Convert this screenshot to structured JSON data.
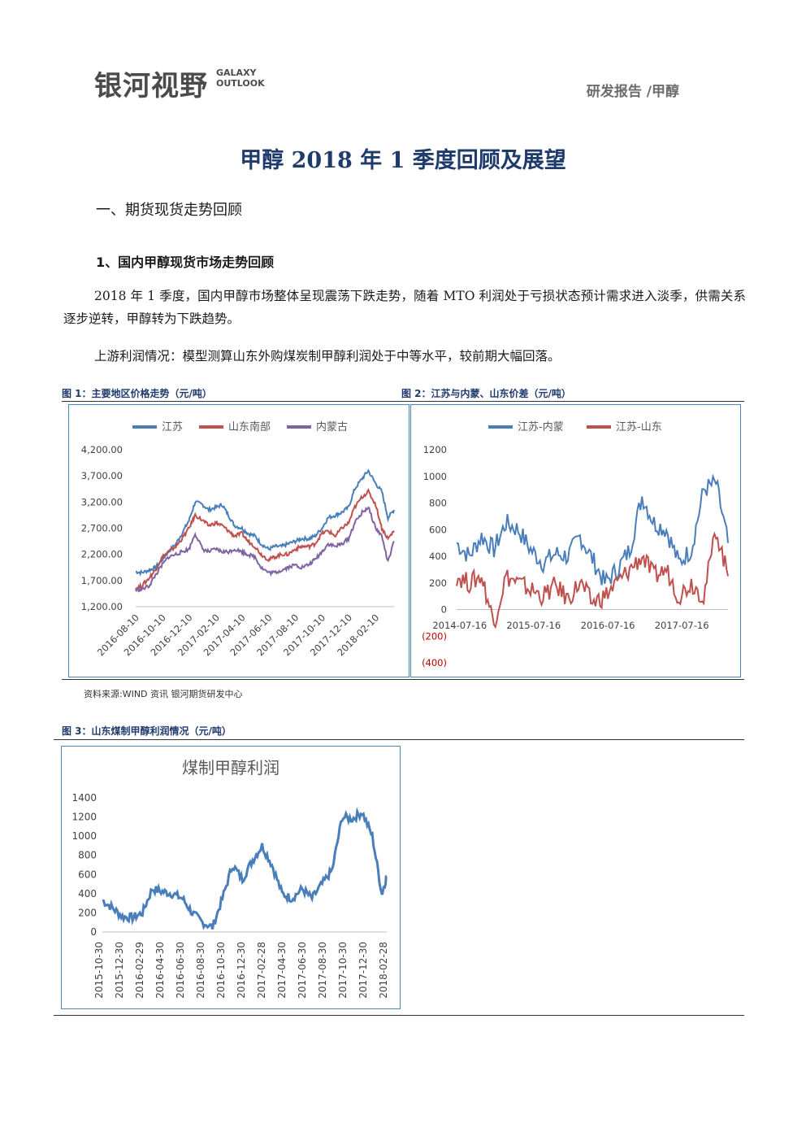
{
  "header": {
    "logo_cn": "银河视野",
    "logo_en_line1": "GALAXY",
    "logo_en_line2": "OUTLOOK",
    "report_type": "研发报告 /甲醇"
  },
  "title": "甲醇 2018 年 1 季度回顾及展望",
  "section1": "一、期货现货走势回顾",
  "subsection1": "1、国内甲醇现货市场走势回顾",
  "para1": "2018 年 1 季度，国内甲醇市场整体呈现震荡下跌走势，随着 MTO 利润处于亏损状态预计需求进入淡季，供需关系逐步逆转，甲醇转为下跌趋势。",
  "para2": "上游利润情况：模型测算山东外购煤炭制甲醇利润处于中等水平，较前期大幅回落。",
  "fig1_caption": "图 1：主要地区价格走势（元/吨）",
  "fig2_caption": "图 2：江苏与内蒙、山东价差（元/吨）",
  "fig3_caption": "图 3：山东煤制甲醇利润情况（元/吨）",
  "source": "资料来源:WIND 资讯   银河期货研发中心",
  "colors": {
    "blue": "#4a7ebb",
    "red": "#c0504d",
    "purple": "#8064a2",
    "navy": "#1f3a6d"
  },
  "chart_data": [
    {
      "type": "line",
      "title": "",
      "legend": [
        "江苏",
        "山东南部",
        "内蒙古"
      ],
      "legend_position": "top",
      "ylim": [
        1200,
        4200
      ],
      "yticks": [
        "4,200.00",
        "3,700.00",
        "3,200.00",
        "2,700.00",
        "2,200.00",
        "1,700.00",
        "1,200.00"
      ],
      "xticks": [
        "2016-08-10",
        "2016-10-10",
        "2016-12-10",
        "2017-02-10",
        "2017-04-10",
        "2017-06-10",
        "2017-08-10",
        "2017-10-10",
        "2017-12-10",
        "2018-02-10"
      ],
      "x": [
        "2016-08-01",
        "2016-08-15",
        "2016-09-01",
        "2016-09-15",
        "2016-10-01",
        "2016-10-15",
        "2016-11-01",
        "2016-11-15",
        "2016-12-01",
        "2016-12-15",
        "2017-01-01",
        "2017-01-15",
        "2017-02-01",
        "2017-02-15",
        "2017-03-01",
        "2017-03-15",
        "2017-04-01",
        "2017-04-15",
        "2017-05-01",
        "2017-05-15",
        "2017-06-01",
        "2017-06-15",
        "2017-07-01",
        "2017-07-15",
        "2017-08-01",
        "2017-08-15",
        "2017-09-01",
        "2017-09-15",
        "2017-10-01",
        "2017-10-15",
        "2017-11-01",
        "2017-11-15",
        "2017-12-01",
        "2017-12-15",
        "2018-01-01",
        "2018-01-15",
        "2018-02-01",
        "2018-02-15",
        "2018-03-01",
        "2018-03-15"
      ],
      "series": [
        {
          "name": "江苏",
          "values": [
            1870,
            1850,
            1900,
            1950,
            2100,
            2250,
            2400,
            2600,
            2850,
            3200,
            3150,
            3050,
            3100,
            3150,
            2950,
            2750,
            2700,
            2600,
            2550,
            2400,
            2300,
            2350,
            2350,
            2400,
            2450,
            2500,
            2500,
            2550,
            2700,
            2900,
            2950,
            3000,
            3100,
            3450,
            3650,
            3800,
            3550,
            3400,
            2900,
            3050
          ]
        },
        {
          "name": "山东南部",
          "values": [
            1550,
            1600,
            1750,
            1900,
            2150,
            2250,
            2350,
            2500,
            2700,
            2950,
            2850,
            2750,
            2800,
            2750,
            2650,
            2550,
            2600,
            2450,
            2350,
            2200,
            2100,
            2150,
            2200,
            2200,
            2300,
            2350,
            2350,
            2400,
            2600,
            2650,
            2550,
            2700,
            2800,
            3100,
            3300,
            3400,
            3150,
            2700,
            2500,
            2650
          ]
        },
        {
          "name": "内蒙古",
          "values": [
            1520,
            1530,
            1600,
            1800,
            2000,
            2150,
            2200,
            2250,
            2300,
            2600,
            2300,
            2250,
            2300,
            2250,
            2250,
            2300,
            2250,
            2200,
            2150,
            1950,
            1850,
            1850,
            1900,
            1950,
            2000,
            1950,
            2000,
            2100,
            2250,
            2400,
            2350,
            2400,
            2500,
            2800,
            3000,
            3100,
            2700,
            2550,
            2050,
            2450
          ]
        }
      ]
    },
    {
      "type": "line",
      "title": "",
      "legend": [
        "江苏-内蒙",
        "江苏-山东"
      ],
      "legend_position": "top",
      "ylim": [
        -400,
        1200
      ],
      "yticks": [
        "1200",
        "1000",
        "800",
        "600",
        "400",
        "200",
        "0",
        "(200)",
        "(400)"
      ],
      "xticks": [
        "2014-07-16",
        "2015-07-16",
        "2016-07-16",
        "2017-07-16"
      ],
      "x": [
        "2014-07",
        "2014-09",
        "2014-11",
        "2015-01",
        "2015-03",
        "2015-05",
        "2015-07",
        "2015-09",
        "2015-11",
        "2016-01",
        "2016-03",
        "2016-05",
        "2016-07",
        "2016-09",
        "2016-11",
        "2017-01",
        "2017-03",
        "2017-05",
        "2017-07",
        "2017-09",
        "2017-11",
        "2018-01",
        "2018-03"
      ],
      "series": [
        {
          "name": "江苏-内蒙",
          "values": [
            500,
            400,
            550,
            450,
            650,
            600,
            450,
            350,
            420,
            400,
            550,
            380,
            200,
            300,
            450,
            850,
            650,
            600,
            350,
            450,
            900,
            950,
            500
          ]
        },
        {
          "name": "江苏-山东",
          "values": [
            250,
            200,
            250,
            -100,
            250,
            200,
            150,
            100,
            180,
            80,
            200,
            50,
            100,
            200,
            300,
            400,
            250,
            300,
            100,
            200,
            100,
            600,
            250
          ]
        }
      ]
    },
    {
      "type": "line",
      "title": "煤制甲醇利润",
      "ylim": [
        0,
        1400
      ],
      "yticks": [
        "1400",
        "1200",
        "1000",
        "800",
        "600",
        "400",
        "200",
        "0"
      ],
      "xticks": [
        "2015-10-30",
        "2015-12-30",
        "2016-02-29",
        "2016-04-30",
        "2016-06-30",
        "2016-08-30",
        "2016-10-30",
        "2016-12-30",
        "2017-02-28",
        "2017-04-30",
        "2017-06-30",
        "2017-08-30",
        "2017-10-30",
        "2017-12-30",
        "2018-02-28"
      ],
      "x": [
        "2015-10-30",
        "2015-11-30",
        "2015-12-30",
        "2016-01-30",
        "2016-02-29",
        "2016-03-30",
        "2016-04-30",
        "2016-05-30",
        "2016-06-30",
        "2016-07-30",
        "2016-08-30",
        "2016-09-30",
        "2016-10-30",
        "2016-11-30",
        "2016-12-30",
        "2017-01-30",
        "2017-02-28",
        "2017-03-30",
        "2017-04-30",
        "2017-05-30",
        "2017-06-30",
        "2017-07-30",
        "2017-08-30",
        "2017-09-30",
        "2017-10-30",
        "2017-11-30",
        "2017-12-30",
        "2018-01-30",
        "2018-02-28",
        "2018-03-15"
      ],
      "series": [
        {
          "name": "",
          "values": [
            330,
            250,
            160,
            150,
            200,
            450,
            420,
            400,
            350,
            200,
            100,
            50,
            350,
            700,
            550,
            750,
            900,
            700,
            400,
            350,
            450,
            350,
            500,
            650,
            1200,
            1180,
            1250,
            1000,
            400,
            580
          ]
        }
      ]
    }
  ]
}
